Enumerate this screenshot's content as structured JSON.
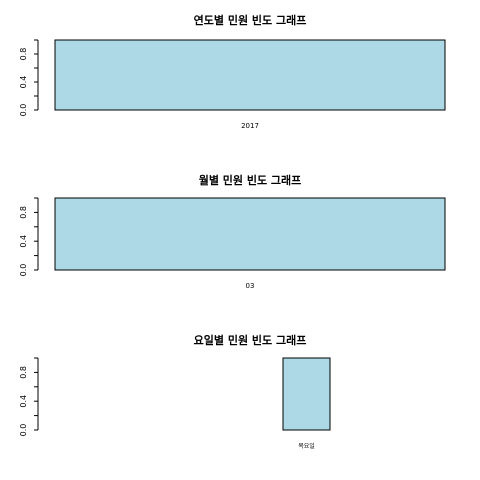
{
  "chart_data": [
    {
      "type": "bar",
      "title": "연도별 민원 빈도 그래프",
      "categories": [
        "2017"
      ],
      "values": [
        1
      ],
      "ylim": [
        0,
        1
      ],
      "yticks": [
        "0.0",
        "0.4",
        "0.8"
      ],
      "xlabel": "",
      "ylabel": "",
      "bar_color": "#ADD8E6",
      "grid": false
    },
    {
      "type": "bar",
      "title": "월별 민원 빈도 그래프",
      "categories": [
        "03"
      ],
      "values": [
        1
      ],
      "ylim": [
        0,
        1
      ],
      "yticks": [
        "0.0",
        "0.4",
        "0.8"
      ],
      "xlabel": "",
      "ylabel": "",
      "bar_color": "#ADD8E6",
      "grid": false
    },
    {
      "type": "bar",
      "title": "요일별 민원 빈도 그래프",
      "categories": [
        "목요일"
      ],
      "values": [
        1
      ],
      "ylim": [
        0,
        1
      ],
      "yticks": [
        "0.0",
        "0.4",
        "0.8"
      ],
      "xlabel": "",
      "ylabel": "",
      "bar_color": "#ADD8E6",
      "grid": false
    }
  ]
}
